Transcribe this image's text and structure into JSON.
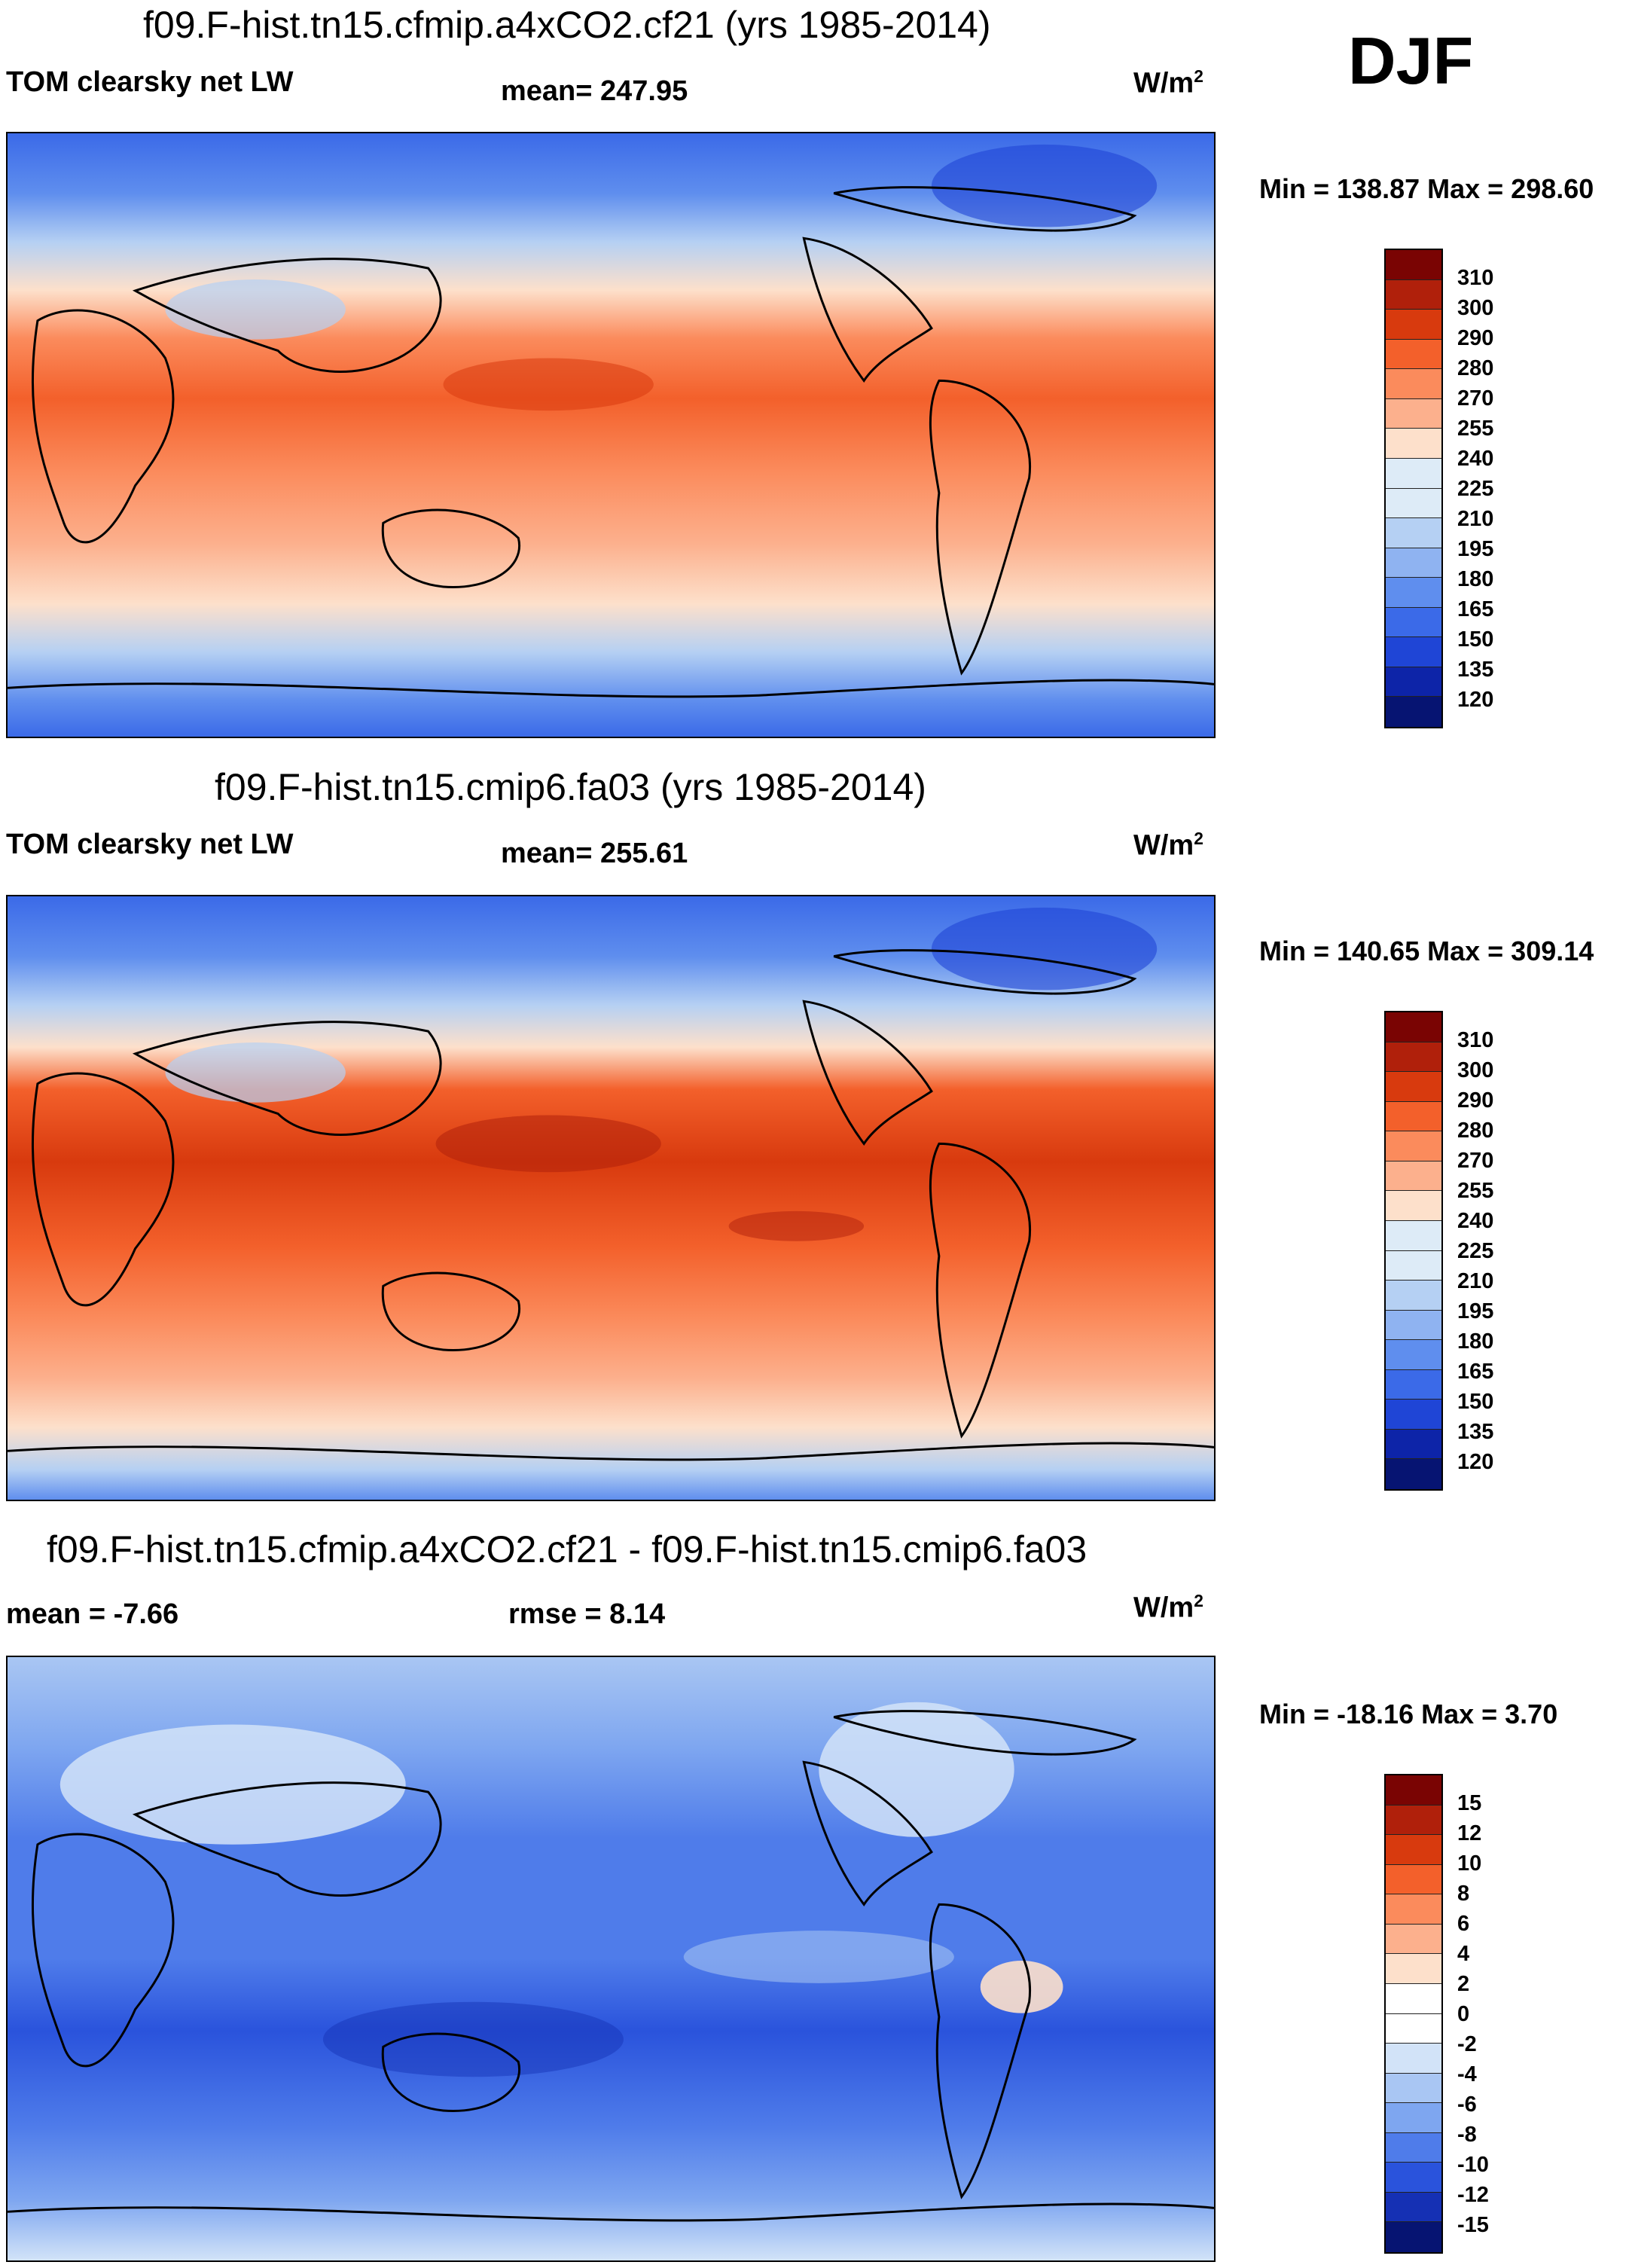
{
  "season": "DJF",
  "panels": [
    {
      "title": "f09.F-hist.tn15.cfmip.a4xCO2.cf21 (yrs 1985-2014)",
      "left_label": "TOM clearsky net LW",
      "stat": "mean= 247.95",
      "units": "W/m",
      "units_exp": "2",
      "minmax": "Min = 138.87 Max = 298.60",
      "palette": [
        "#7a0403",
        "#b0200b",
        "#d83a0e",
        "#f3602b",
        "#fb8b5c",
        "#fcb08d",
        "#fde0cb",
        "#ddebf7",
        "#b5d0f3",
        "#8fb3f1",
        "#5f8eee",
        "#3b6ae8",
        "#1f45d6",
        "#0d24a8",
        "#061472"
      ],
      "levels": [
        "310",
        "300",
        "290",
        "280",
        "270",
        "255",
        "240",
        "225",
        "210",
        "195",
        "180",
        "165",
        "150",
        "135",
        "120"
      ]
    },
    {
      "title": "f09.F-hist.tn15.cmip6.fa03 (yrs 1985-2014)",
      "left_label": "TOM clearsky net LW",
      "stat": "mean= 255.61",
      "units": "W/m",
      "units_exp": "2",
      "minmax": "Min = 140.65 Max = 309.14",
      "palette": [
        "#7a0403",
        "#b0200b",
        "#d83a0e",
        "#f3602b",
        "#fb8b5c",
        "#fcb08d",
        "#fde0cb",
        "#ddebf7",
        "#b5d0f3",
        "#8fb3f1",
        "#5f8eee",
        "#3b6ae8",
        "#1f45d6",
        "#0d24a8",
        "#061472"
      ],
      "levels": [
        "310",
        "300",
        "290",
        "280",
        "270",
        "255",
        "240",
        "225",
        "210",
        "195",
        "180",
        "165",
        "150",
        "135",
        "120"
      ]
    },
    {
      "title": "f09.F-hist.tn15.cfmip.a4xCO2.cf21 - f09.F-hist.tn15.cmip6.fa03",
      "left_label": "mean =  -7.66",
      "stat": "rmse =   8.14",
      "units": "W/m",
      "units_exp": "2",
      "minmax": "Min = -18.16 Max =   3.70",
      "palette": [
        "#7a0403",
        "#b0200b",
        "#d83a0e",
        "#f3602b",
        "#fb8b5c",
        "#fcb08d",
        "#fde0cb",
        "#ffffff",
        "#d2e3f8",
        "#a9c6f3",
        "#7ea6f0",
        "#4f7cea",
        "#2a53dc",
        "#1530b4",
        "#061472"
      ],
      "levels": [
        "15",
        "12",
        "10",
        "8",
        "6",
        "4",
        "2",
        "0",
        "-2",
        "-4",
        "-6",
        "-8",
        "-10",
        "-12",
        "-15"
      ]
    }
  ]
}
